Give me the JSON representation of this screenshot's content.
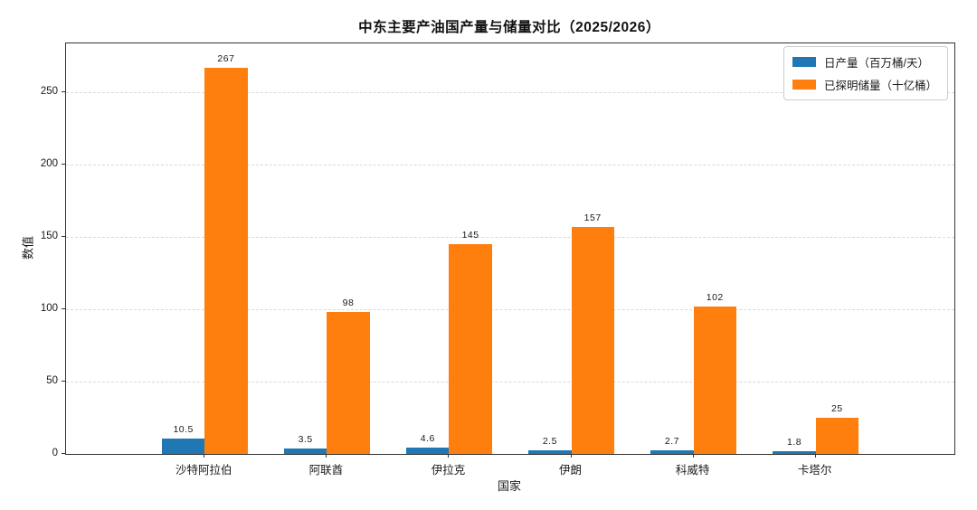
{
  "chart_data": {
    "type": "bar",
    "title": "中东主要产油国产量与储量对比（2025/2026）",
    "xlabel": "国家",
    "ylabel": "数值",
    "categories": [
      "沙特阿拉伯",
      "阿联酋",
      "伊拉克",
      "伊朗",
      "科威特",
      "卡塔尔"
    ],
    "series": [
      {
        "name": "日产量（百万桶/天）",
        "color": "#1f77b4",
        "values": [
          10.5,
          3.5,
          4.6,
          2.5,
          2.7,
          1.8
        ]
      },
      {
        "name": "已探明储量（十亿桶）",
        "color": "#ff7f0e",
        "values": [
          267,
          98,
          145,
          157,
          102,
          25
        ]
      }
    ],
    "yticks": [
      0,
      50,
      100,
      150,
      200,
      250
    ],
    "ylim": [
      0,
      284
    ],
    "grid": "horizontal-dashed",
    "legend_position": "upper-right",
    "bar_value_labels": true,
    "background": "#ffffff"
  }
}
